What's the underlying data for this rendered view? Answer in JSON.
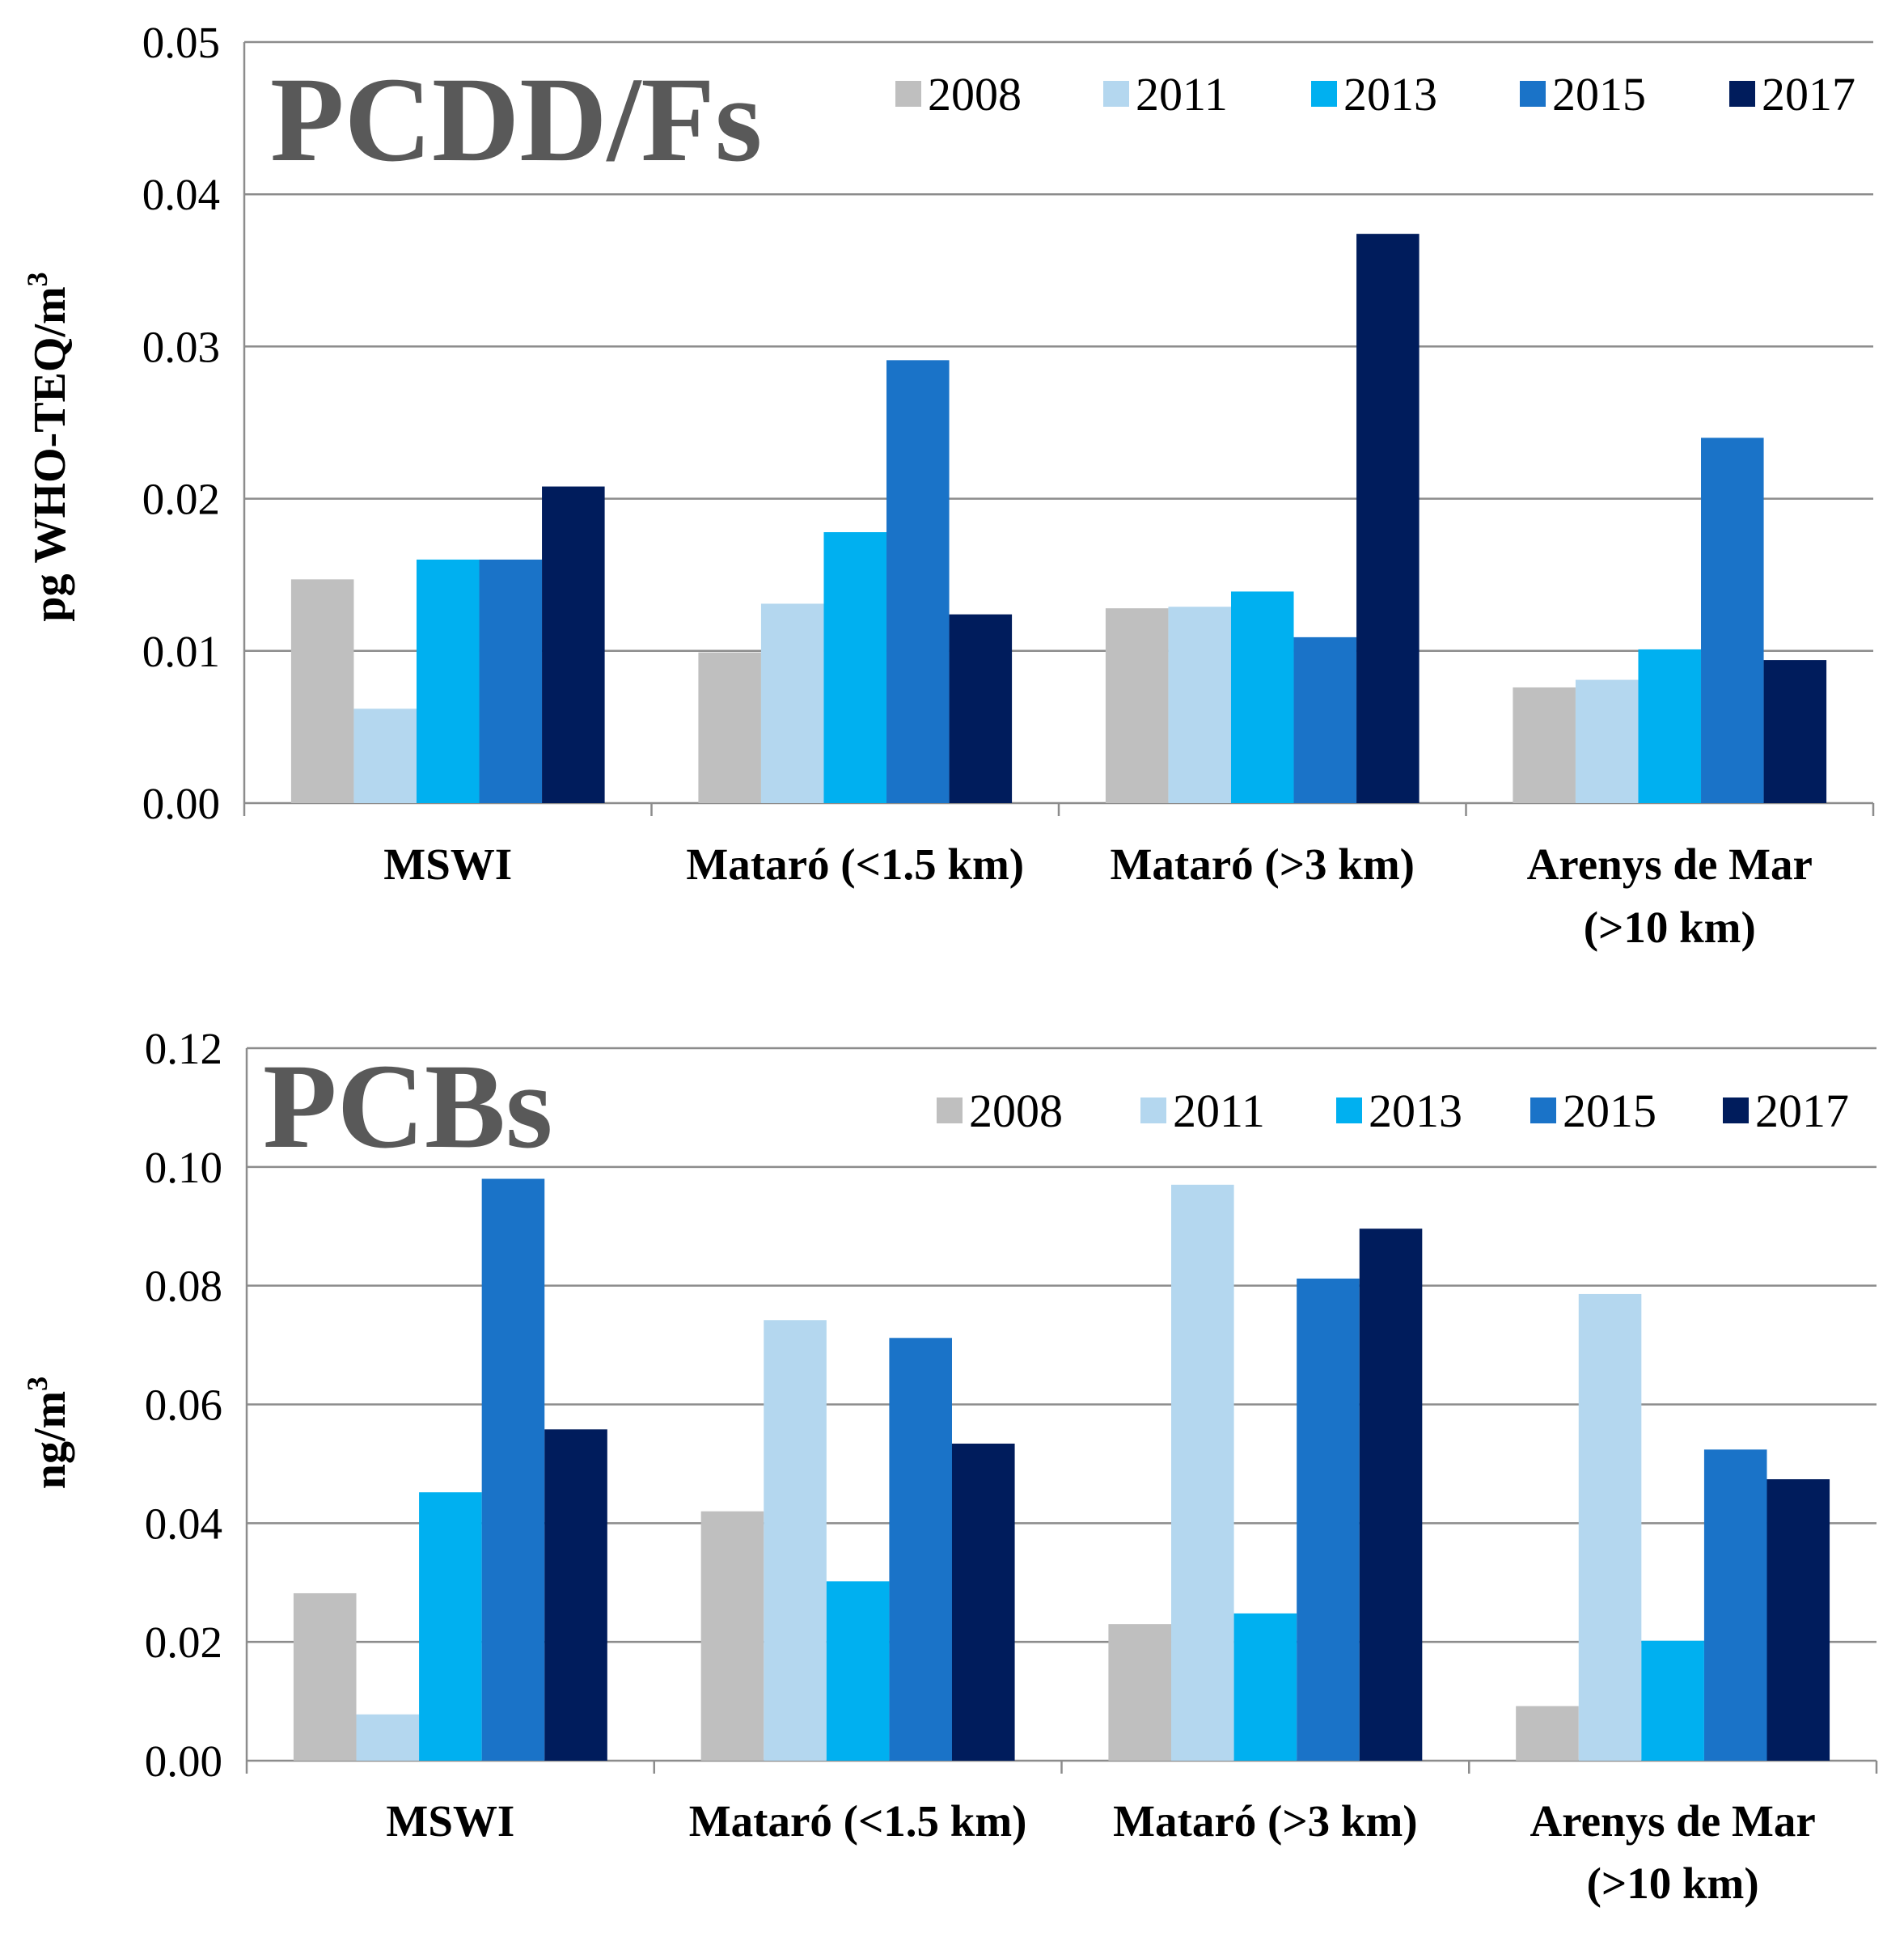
{
  "chart_data": [
    {
      "type": "bar",
      "title": "PCDD/Fs",
      "ylabel": "pg WHO-TEQ/m",
      "ylabel_sup": "3",
      "ylim": [
        0,
        0.05
      ],
      "ytick_values": [
        0,
        0.01,
        0.02,
        0.03,
        0.04,
        0.05
      ],
      "ytick_labels": [
        "0.00",
        "0.01",
        "0.02",
        "0.03",
        "0.04",
        "0.05"
      ],
      "categories": [
        [
          "MSWI"
        ],
        [
          "Mataró (<1.5 km)"
        ],
        [
          "Mataró (>3 km)"
        ],
        [
          "Arenys de Mar",
          "(>10 km)"
        ]
      ],
      "series": [
        {
          "name": "2008",
          "color": "#bfbfbf",
          "values": [
            0.0147,
            0.0099,
            0.0128,
            0.0076
          ]
        },
        {
          "name": "2011",
          "color": "#b4d7ef",
          "values": [
            0.0062,
            0.0131,
            0.0129,
            0.0081
          ]
        },
        {
          "name": "2013",
          "color": "#00b0f0",
          "values": [
            0.016,
            0.0178,
            0.0139,
            0.0101
          ]
        },
        {
          "name": "2015",
          "color": "#1a73c8",
          "values": [
            0.016,
            0.0291,
            0.0109,
            0.024
          ]
        },
        {
          "name": "2017",
          "color": "#001c5c",
          "values": [
            0.0208,
            0.0124,
            0.0374,
            0.0094
          ]
        }
      ]
    },
    {
      "type": "bar",
      "title": "PCBs",
      "ylabel": "ng/m",
      "ylabel_sup": "3",
      "ylim": [
        0,
        0.12
      ],
      "ytick_values": [
        0,
        0.02,
        0.04,
        0.06,
        0.08,
        0.1,
        0.12
      ],
      "ytick_labels": [
        "0.00",
        "0.02",
        "0.04",
        "0.06",
        "0.08",
        "0.10",
        "0.12"
      ],
      "categories": [
        [
          "MSWI"
        ],
        [
          "Mataró (<1.5 km)"
        ],
        [
          "Mataró (>3 km)"
        ],
        [
          "Arenys de Mar",
          "(>10 km)"
        ]
      ],
      "series": [
        {
          "name": "2008",
          "color": "#bfbfbf",
          "values": [
            0.0282,
            0.042,
            0.023,
            0.0092
          ]
        },
        {
          "name": "2011",
          "color": "#b4d7ef",
          "values": [
            0.0078,
            0.0742,
            0.097,
            0.0786
          ]
        },
        {
          "name": "2013",
          "color": "#00b0f0",
          "values": [
            0.0452,
            0.0302,
            0.0248,
            0.0202
          ]
        },
        {
          "name": "2015",
          "color": "#1a73c8",
          "values": [
            0.098,
            0.0712,
            0.0812,
            0.0524
          ]
        },
        {
          "name": "2017",
          "color": "#001c5c",
          "values": [
            0.0558,
            0.0534,
            0.0896,
            0.0474
          ]
        }
      ]
    }
  ]
}
